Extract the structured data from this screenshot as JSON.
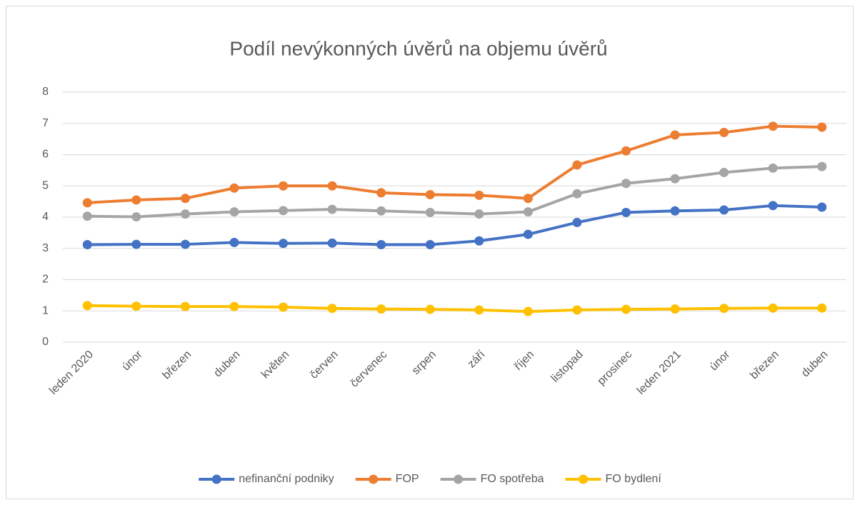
{
  "chart_data": {
    "type": "line",
    "title": "Podíl nevýkonných úvěrů na objemu úvěrů",
    "categories": [
      "leden 2020",
      "únor",
      "březen",
      "duben",
      "květen",
      "červen",
      "červenec",
      "srpen",
      "září",
      "říjen",
      "listopad",
      "prosinec",
      "leden 2021",
      "únor",
      "březen",
      "duben"
    ],
    "series": [
      {
        "name": "nefinanční podniky",
        "color": "#4472c4",
        "values": [
          3.12,
          3.13,
          3.13,
          3.19,
          3.16,
          3.17,
          3.12,
          3.12,
          3.24,
          3.45,
          3.83,
          4.15,
          4.2,
          4.23,
          4.37,
          4.32
        ]
      },
      {
        "name": "FOP",
        "color": "#ed7d31",
        "values": [
          4.46,
          4.55,
          4.6,
          4.93,
          5.0,
          5.0,
          4.78,
          4.72,
          4.7,
          4.6,
          5.67,
          6.12,
          6.63,
          6.71,
          6.91,
          6.88
        ]
      },
      {
        "name": "FO spotřeba",
        "color": "#a5a5a5",
        "values": [
          4.03,
          4.01,
          4.1,
          4.17,
          4.21,
          4.25,
          4.2,
          4.15,
          4.1,
          4.17,
          4.75,
          5.08,
          5.23,
          5.43,
          5.57,
          5.62
        ]
      },
      {
        "name": "FO bydlení",
        "color": "#ffc000",
        "values": [
          1.17,
          1.15,
          1.14,
          1.14,
          1.12,
          1.08,
          1.06,
          1.05,
          1.03,
          0.98,
          1.03,
          1.05,
          1.06,
          1.08,
          1.09,
          1.09
        ]
      }
    ],
    "ylim": [
      0,
      8
    ],
    "yticks": [
      0,
      1,
      2,
      3,
      4,
      5,
      6,
      7,
      8
    ],
    "grid": true,
    "legend": "bottom"
  }
}
